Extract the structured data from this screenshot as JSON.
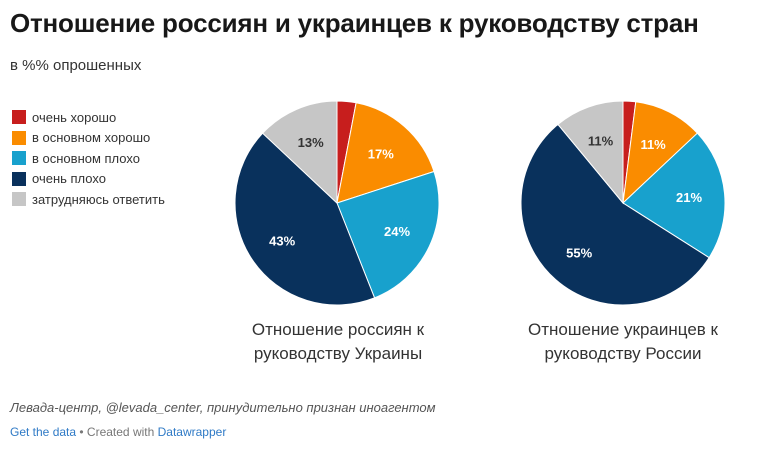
{
  "title": "Отношение россиян и украинцев к руководству стран",
  "subtitle": "в %% опрошенных",
  "legend": [
    {
      "label": "очень хорошо",
      "color": "#c71e1d"
    },
    {
      "label": "в основном хорошо",
      "color": "#fa8c00"
    },
    {
      "label": "в основном плохо",
      "color": "#18a1cd"
    },
    {
      "label": "очень плохо",
      "color": "#09315c"
    },
    {
      "label": "затрудняюсь ответить",
      "color": "#c6c6c6"
    }
  ],
  "chart_data": [
    {
      "type": "pie",
      "caption_line1": "Отношение россиян к",
      "caption_line2": "руководству Украины",
      "slices": [
        {
          "category": "очень хорошо",
          "value": 3,
          "label": ""
        },
        {
          "category": "в основном хорошо",
          "value": 17,
          "label": "17%"
        },
        {
          "category": "в основном плохо",
          "value": 24,
          "label": "24%"
        },
        {
          "category": "очень плохо",
          "value": 43,
          "label": "43%"
        },
        {
          "category": "затрудняюсь ответить",
          "value": 13,
          "label": "13%"
        }
      ]
    },
    {
      "type": "pie",
      "caption_line1": "Отношение украинцев к",
      "caption_line2": "руководству России",
      "slices": [
        {
          "category": "очень хорошо",
          "value": 2,
          "label": ""
        },
        {
          "category": "в основном хорошо",
          "value": 11,
          "label": "11%"
        },
        {
          "category": "в основном плохо",
          "value": 21,
          "label": "21%"
        },
        {
          "category": "очень плохо",
          "value": 55,
          "label": "55%"
        },
        {
          "category": "затрудняюсь ответить",
          "value": 11,
          "label": "11%"
        }
      ]
    }
  ],
  "notes": "Левада-центр, @levada_center, принудительно признан иноагентом",
  "footer": {
    "get_data": "Get the data",
    "separator": " • Created with ",
    "tool": "Datawrapper"
  }
}
